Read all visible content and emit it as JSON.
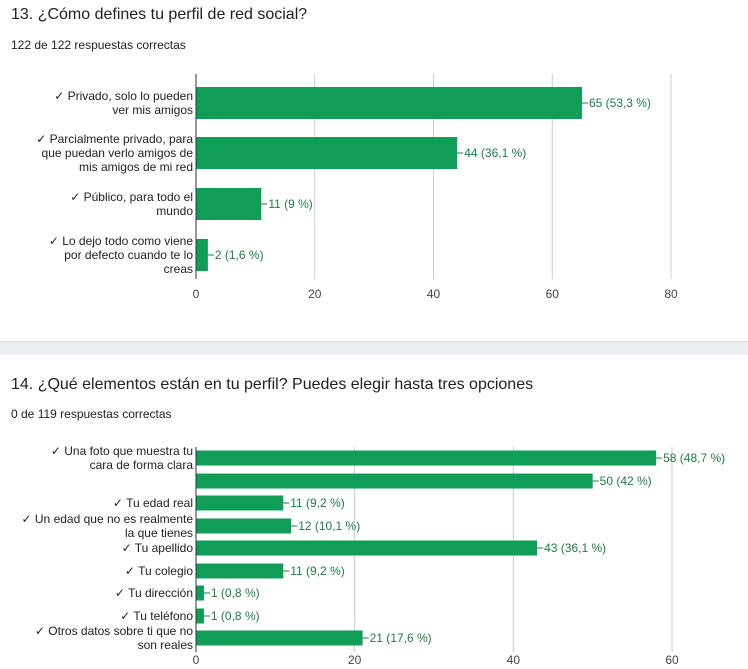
{
  "questions": [
    {
      "title": "13. ¿Cómo defines tu perfil de red social?",
      "subtitle": "122 de 122 respuestas correctas"
    },
    {
      "title": "14. ¿Qué elementos están en tu perfil? Puedes elegir hasta tres opciones",
      "subtitle": "0 de 119 respuestas correctas"
    }
  ],
  "colors": {
    "bar": "#0f9d58",
    "label_text": "#1e7e45",
    "axis_text": "#444444",
    "grid": "#cccccc",
    "separator": "#eceff1"
  },
  "chart_data": [
    {
      "type": "bar",
      "orientation": "horizontal",
      "categories": [
        "✓ Privado, solo lo pueden ver mis amigos",
        "✓ Parcialmente privado, para que puedan verlo amigos de mis amigos de mi red",
        "✓ Público, para todo el mundo",
        "✓ Lo dejo todo como viene por defecto cuando te lo creas"
      ],
      "values": [
        65,
        44,
        11,
        2
      ],
      "data_labels": [
        "65 (53,3 %)",
        "44 (36,1 %)",
        "11 (9 %)",
        "2 (1,6 %)"
      ],
      "xlim": [
        0,
        80
      ],
      "xticks": [
        0,
        20,
        40,
        60,
        80
      ],
      "grid": true,
      "legend": "none"
    },
    {
      "type": "bar",
      "orientation": "horizontal",
      "categories": [
        "✓ Una foto que muestra tu cara de forma clara",
        "",
        "✓ Tu edad real",
        "✓ Un edad que no es realmente la que tienes",
        "✓ Tu apellido",
        "✓ Tu colegio",
        "✓ Tu dirección",
        "✓ Tu teléfono",
        "✓ Otros datos sobre ti que no son reales"
      ],
      "values": [
        58,
        50,
        11,
        12,
        43,
        11,
        1,
        1,
        21
      ],
      "data_labels": [
        "58 (48,7 %)",
        "50 (42 %)",
        "11 (9,2 %)",
        "12 (10,1 %)",
        "43 (36,1 %)",
        "11 (9,2 %)",
        "1 (0,8 %)",
        "1 (0,8 %)",
        "21 (17,6 %)"
      ],
      "xlim": [
        0,
        60
      ],
      "xticks": [
        0,
        20,
        40,
        60
      ],
      "grid": true,
      "legend": "none"
    }
  ]
}
